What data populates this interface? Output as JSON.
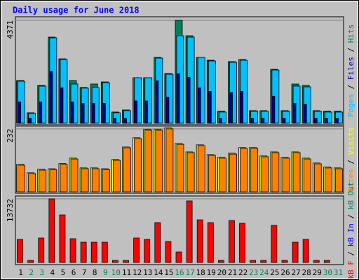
{
  "chart_data": [
    {
      "type": "bar",
      "title": "Daily usage for June 2018",
      "ylim": [
        0,
        4371
      ],
      "yticks": [
        4371
      ],
      "series": [
        {
          "name": "Hits",
          "color": "#00805c",
          "values": [
            1814,
            446,
            1605,
            3657,
            2735,
            1814,
            1516,
            1665,
            1754,
            476,
            565,
            1932,
            1932,
            2795,
            2111,
            4371,
            3716,
            2795,
            2676,
            505,
            2616,
            2705,
            535,
            535,
            2289,
            535,
            1665,
            1605,
            535,
            505,
            505
          ]
        },
        {
          "name": "Pages",
          "color": "#00c0ff",
          "values": [
            1784,
            416,
            1575,
            3627,
            2705,
            1665,
            1490,
            1516,
            1724,
            446,
            535,
            1932,
            1932,
            2765,
            2081,
            3716,
            3657,
            2795,
            2646,
            476,
            2586,
            2675,
            505,
            505,
            2259,
            505,
            1576,
            1545,
            505,
            476,
            476
          ]
        },
        {
          "name": "Files",
          "color": "#0000a0",
          "values": [
            900,
            200,
            900,
            2200,
            1500,
            900,
            850,
            850,
            850,
            200,
            200,
            950,
            950,
            1800,
            1100,
            2100,
            1950,
            1500,
            1350,
            200,
            1300,
            1350,
            200,
            200,
            1150,
            200,
            850,
            800,
            200,
            200,
            200
          ]
        }
      ]
    },
    {
      "type": "bar",
      "ylim": [
        0,
        232
      ],
      "yticks": [
        232
      ],
      "series": [
        {
          "name": "Visits",
          "color": "#ffff00",
          "values": [
            101,
            70,
            83,
            85,
            104,
            124,
            88,
            88,
            85,
            119,
            165,
            199,
            230,
            230,
            235,
            178,
            147,
            173,
            137,
            127,
            142,
            163,
            163,
            132,
            147,
            127,
            147,
            124,
            106,
            91,
            88
          ]
        },
        {
          "name": "Sites",
          "color": "#ff8000",
          "values": [
            98,
            67,
            80,
            82,
            101,
            121,
            85,
            85,
            82,
            116,
            162,
            196,
            227,
            227,
            232,
            175,
            144,
            170,
            134,
            124,
            139,
            160,
            160,
            129,
            144,
            124,
            144,
            121,
            103,
            88,
            85
          ]
        }
      ]
    },
    {
      "type": "bar",
      "ylim": [
        0,
        13732
      ],
      "yticks": [
        13732
      ],
      "categories": [
        "1",
        "2",
        "3",
        "4",
        "5",
        "6",
        "7",
        "8",
        "9",
        "10",
        "11",
        "12",
        "13",
        "14",
        "15",
        "16",
        "17",
        "18",
        "19",
        "20",
        "21",
        "22",
        "23",
        "24",
        "25",
        "26",
        "27",
        "28",
        "29",
        "30",
        "31"
      ],
      "category_colors": [
        "#000000",
        "#00805c",
        "#00805c",
        "#000000",
        "#000000",
        "#000000",
        "#000000",
        "#000000",
        "#00805c",
        "#00805c",
        "#000000",
        "#000000",
        "#000000",
        "#000000",
        "#000000",
        "#00805c",
        "#00805c",
        "#000000",
        "#000000",
        "#000000",
        "#000000",
        "#000000",
        "#00805c",
        "#00805c",
        "#000000",
        "#000000",
        "#000000",
        "#000000",
        "#000000",
        "#00805c",
        "#00805c"
      ],
      "series": [
        {
          "name": "kB F",
          "color": "#ff0000",
          "values": [
            4980,
            453,
            5282,
            13732,
            10261,
            5131,
            4376,
            4376,
            4376,
            453,
            453,
            5282,
            4980,
            8601,
            4527,
            2264,
            13279,
            9205,
            8601,
            453,
            9054,
            8450,
            453,
            453,
            7998,
            453,
            4376,
            4980,
            453,
            453,
            0
          ]
        },
        {
          "name": "kB In",
          "color": "#0000ff",
          "values": [
            null,
            null,
            null,
            null,
            null,
            null,
            null,
            null,
            null,
            null,
            null,
            null,
            null,
            null,
            null,
            null,
            null,
            null,
            null,
            null,
            null,
            null,
            null,
            null,
            null,
            null,
            null,
            null,
            null,
            null,
            null
          ]
        },
        {
          "name": "kB Out",
          "color": "#00805c",
          "values": [
            null,
            null,
            null,
            null,
            null,
            null,
            null,
            null,
            null,
            null,
            null,
            null,
            null,
            null,
            null,
            null,
            null,
            null,
            null,
            null,
            null,
            null,
            null,
            null,
            null,
            null,
            null,
            null,
            null,
            null,
            null
          ]
        }
      ]
    }
  ]
}
